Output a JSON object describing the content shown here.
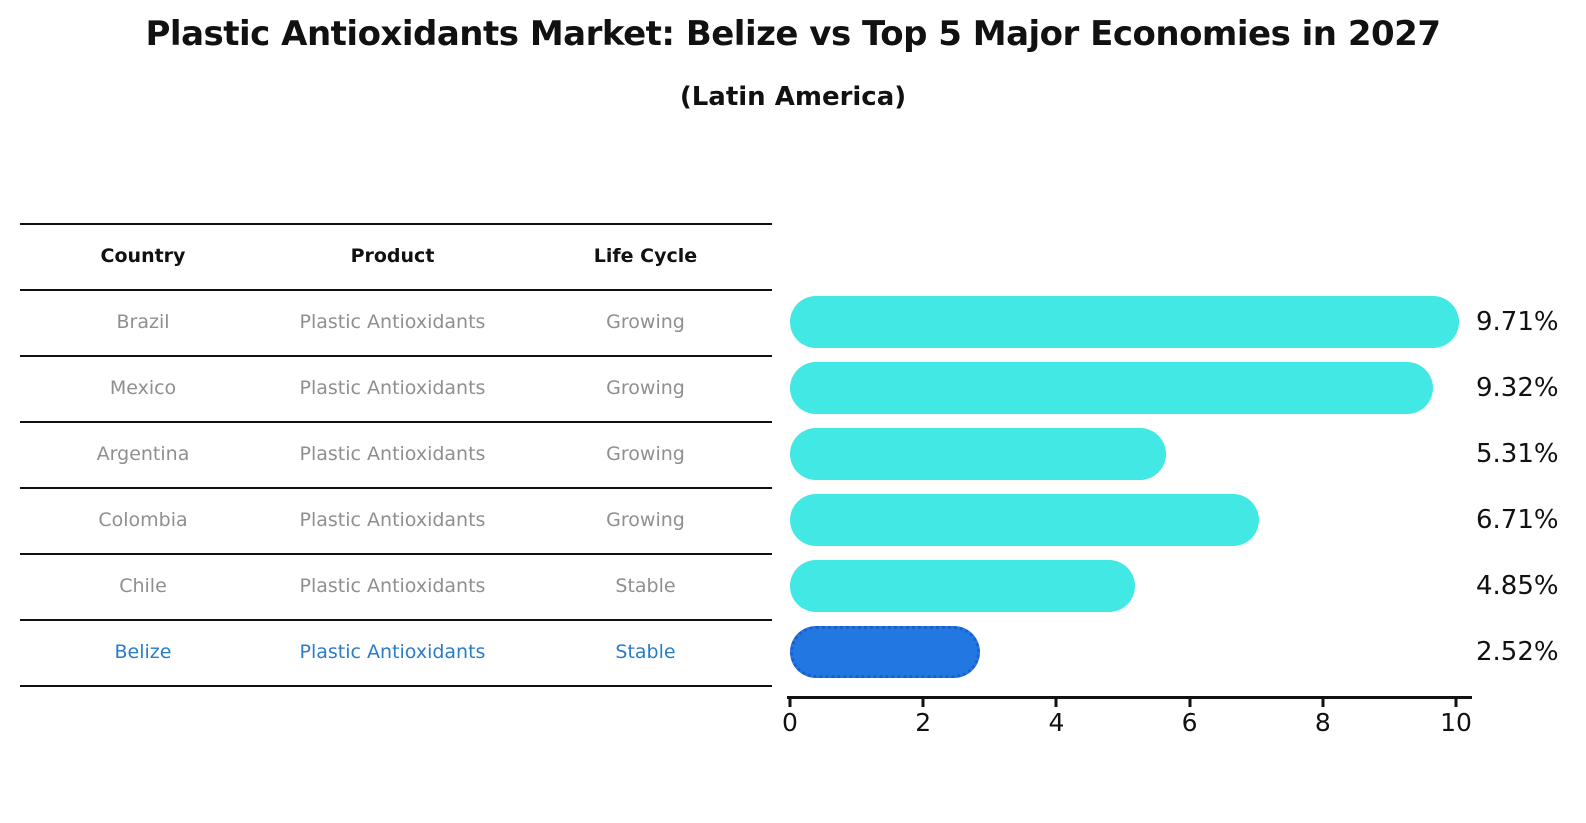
{
  "title": "Plastic Antioxidants Market: Belize vs Top 5 Major Economies in 2027",
  "subtitle": "(Latin America)",
  "table": {
    "headers": [
      "Country",
      "Product",
      "Life Cycle"
    ],
    "rows": [
      {
        "country": "Brazil",
        "product": "Plastic Antioxidants",
        "life_cycle": "Growing"
      },
      {
        "country": "Mexico",
        "product": "Plastic Antioxidants",
        "life_cycle": "Growing"
      },
      {
        "country": "Argentina",
        "product": "Plastic Antioxidants",
        "life_cycle": "Growing"
      },
      {
        "country": "Colombia",
        "product": "Plastic Antioxidants",
        "life_cycle": "Growing"
      },
      {
        "country": "Chile",
        "product": "Plastic Antioxidants",
        "life_cycle": "Stable"
      },
      {
        "country": "Belize",
        "product": "Plastic Antioxidants",
        "life_cycle": "Stable"
      }
    ],
    "highlight_row": "Belize"
  },
  "chart_data": {
    "type": "bar",
    "orientation": "horizontal",
    "title": "Plastic Antioxidants Market: Belize vs Top 5 Major Economies in 2027",
    "subtitle": "(Latin America)",
    "categories": [
      "Brazil",
      "Mexico",
      "Argentina",
      "Colombia",
      "Chile",
      "Belize"
    ],
    "values": [
      9.71,
      9.32,
      5.31,
      6.71,
      4.85,
      2.52
    ],
    "value_labels": [
      "9.71%",
      "9.32%",
      "5.31%",
      "6.71%",
      "4.85%",
      "2.52%"
    ],
    "xlim": [
      0,
      10
    ],
    "x_ticks": [
      "0",
      "2",
      "4",
      "6",
      "8",
      "10"
    ],
    "grid": false,
    "legend": false,
    "highlight_index": 5,
    "bar_color": "#42e8e3",
    "highlight_bar_color": "#2277e0",
    "highlight_border_color": "#1a5fd0"
  },
  "colors": {
    "title_text": "#111111",
    "table_text_gray": "#8f8f8f",
    "highlight_text_blue": "#2a7cc9",
    "axis_line": "#111111"
  }
}
